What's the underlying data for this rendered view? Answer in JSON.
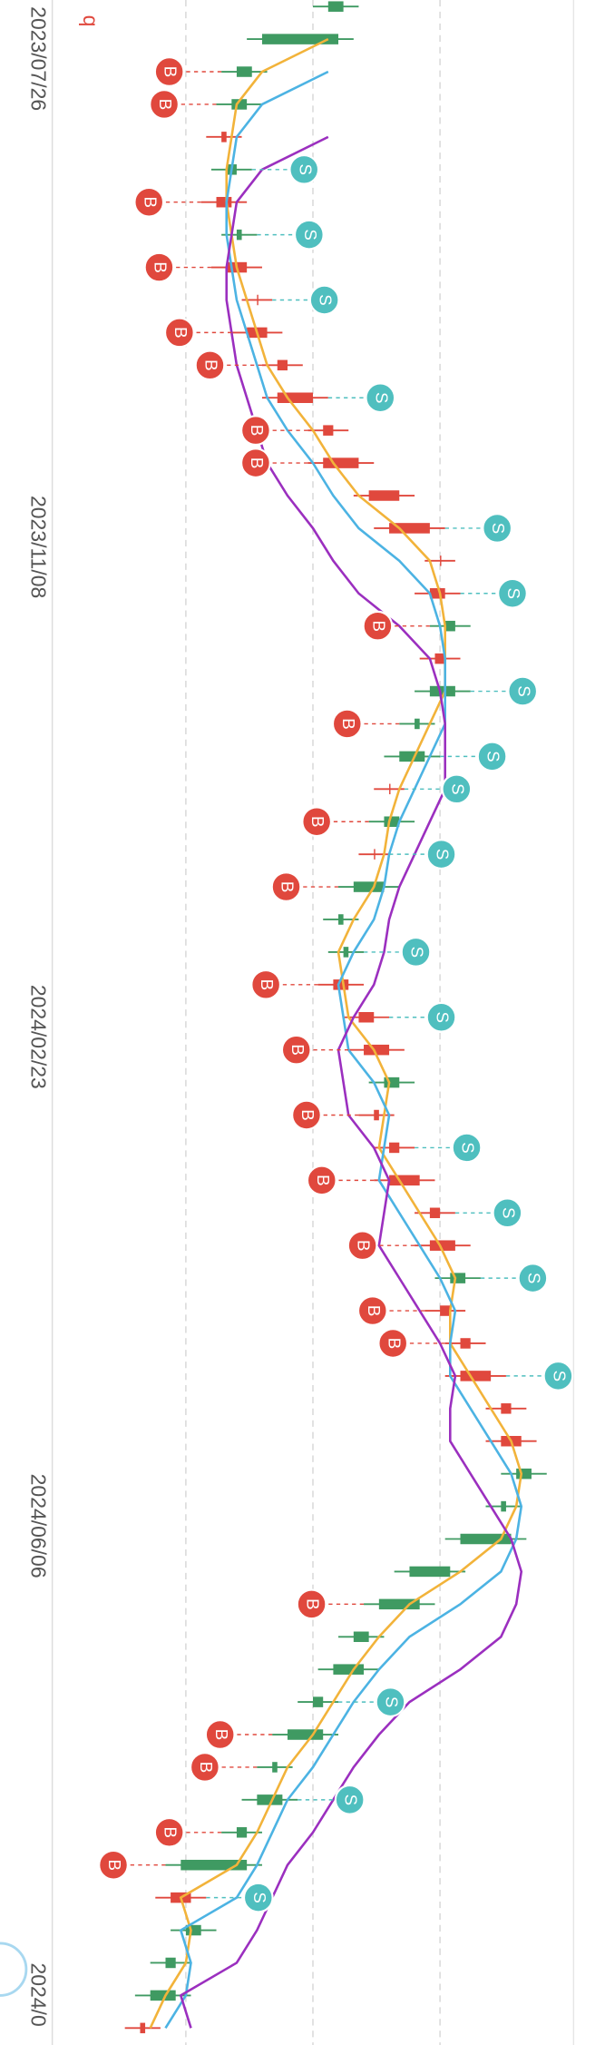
{
  "chart_data": {
    "type": "candlestick",
    "corner_label": "q",
    "categories": [
      "2023/07/26",
      null,
      null,
      null,
      null,
      null,
      null,
      null,
      null,
      null,
      null,
      null,
      null,
      null,
      null,
      "2023/11/08",
      null,
      null,
      null,
      null,
      null,
      null,
      null,
      null,
      null,
      null,
      null,
      null,
      null,
      null,
      "2024/02/23",
      null,
      null,
      null,
      null,
      null,
      null,
      null,
      null,
      null,
      null,
      null,
      null,
      null,
      null,
      "2024/06/06",
      null,
      null,
      null,
      null,
      null,
      null,
      null,
      null,
      null,
      null,
      null,
      null,
      null,
      null,
      "2024/0",
      null,
      null
    ],
    "open": [
      56,
      55,
      38,
      37,
      32,
      35,
      31,
      36,
      33,
      39,
      37,
      43,
      43,
      52,
      52,
      61,
      65,
      75,
      73,
      78,
      74,
      78,
      71,
      72,
      65,
      67,
      62,
      64,
      56,
      57,
      54,
      59,
      60,
      67,
      62,
      65,
      65,
      73,
      73,
      80,
      75,
      79,
      79,
      87,
      87,
      93,
      88,
      89,
      77,
      71,
      61,
      60,
      52,
      52,
      43,
      44,
      37,
      37,
      22,
      28,
      23,
      23,
      16
    ],
    "high": [
      59,
      58,
      41,
      40,
      36,
      38,
      37,
      39,
      40,
      42,
      44,
      48,
      53,
      57,
      62,
      70,
      76,
      78,
      79,
      81,
      79,
      81,
      74,
      75,
      68,
      70,
      65,
      67,
      59,
      60,
      60,
      65,
      68,
      70,
      66,
      70,
      74,
      78,
      81,
      83,
      80,
      84,
      88,
      92,
      94,
      96,
      91,
      92,
      80,
      74,
      64,
      63,
      55,
      55,
      46,
      47,
      40,
      40,
      29,
      31,
      26,
      26,
      20
    ],
    "low": [
      50,
      37,
      32,
      31,
      29,
      30,
      28,
      32,
      30,
      36,
      34,
      40,
      40,
      49,
      49,
      58,
      62,
      72,
      70,
      73,
      71,
      70,
      67,
      64,
      62,
      61,
      59,
      55,
      52,
      53,
      51,
      56,
      57,
      61,
      59,
      62,
      62,
      70,
      70,
      74,
      72,
      76,
      76,
      84,
      84,
      87,
      84,
      76,
      66,
      60,
      55,
      51,
      47,
      42,
      39,
      36,
      32,
      21,
      19,
      22,
      18,
      15,
      13
    ],
    "close": [
      53,
      40,
      35,
      34,
      33,
      33,
      34,
      35,
      37,
      39,
      41,
      45,
      50,
      54,
      59,
      67,
      73,
      75,
      76,
      76,
      76,
      73,
      70,
      67,
      65,
      64,
      62,
      58,
      55,
      56,
      57,
      62,
      65,
      64,
      63,
      67,
      71,
      75,
      78,
      77,
      77,
      81,
      85,
      89,
      91,
      90,
      87,
      79,
      69,
      63,
      58,
      54,
      50,
      45,
      42,
      39,
      35,
      24,
      26,
      25,
      21,
      18,
      17
    ],
    "up_color": "#e0483d",
    "down_color": "#3f9a62",
    "lines": [
      {
        "color": "#f2b33a",
        "values": [
          null,
          53,
          40,
          35,
          34,
          33,
          33,
          34,
          35,
          37,
          39,
          41,
          45,
          50,
          54,
          59,
          67,
          73,
          75,
          76,
          76,
          76,
          73,
          70,
          67,
          65,
          64,
          62,
          58,
          55,
          56,
          57,
          62,
          65,
          64,
          63,
          67,
          71,
          75,
          78,
          77,
          77,
          81,
          85,
          89,
          91,
          90,
          87,
          79,
          69,
          63,
          58,
          54,
          50,
          45,
          42,
          39,
          35,
          24,
          26,
          25,
          21,
          18
        ]
      },
      {
        "color": "#4cb3e3",
        "values": [
          null,
          null,
          53,
          40,
          35,
          34,
          33,
          33,
          34,
          35,
          37,
          39,
          41,
          45,
          50,
          54,
          59,
          67,
          73,
          75,
          76,
          76,
          76,
          73,
          70,
          67,
          65,
          64,
          62,
          58,
          55,
          56,
          57,
          62,
          65,
          64,
          63,
          67,
          71,
          75,
          78,
          77,
          77,
          81,
          85,
          89,
          91,
          90,
          87,
          79,
          69,
          63,
          58,
          54,
          50,
          45,
          42,
          39,
          35,
          24,
          26,
          25,
          21
        ]
      },
      {
        "color": "#9b2fbf",
        "values": [
          null,
          null,
          null,
          null,
          53,
          40,
          35,
          34,
          33,
          33,
          34,
          35,
          37,
          39,
          41,
          45,
          50,
          54,
          59,
          67,
          73,
          75,
          76,
          76,
          76,
          73,
          70,
          67,
          65,
          64,
          62,
          58,
          55,
          56,
          57,
          62,
          65,
          64,
          63,
          67,
          71,
          75,
          78,
          77,
          77,
          81,
          85,
          89,
          91,
          90,
          87,
          79,
          69,
          63,
          58,
          54,
          50,
          45,
          42,
          39,
          35,
          24,
          26
        ]
      }
    ],
    "signals": [
      null,
      null,
      "B",
      "B",
      null,
      "S",
      "B",
      "S",
      "B",
      "S",
      "B",
      "B",
      "S",
      "B",
      "B",
      null,
      "S",
      null,
      "S",
      "B",
      null,
      "S",
      "B",
      "S",
      "S",
      "B",
      "S",
      "B",
      null,
      "S",
      "B",
      "S",
      "B",
      null,
      "B",
      "S",
      "B",
      "S",
      "B",
      "S",
      "B",
      "B",
      "S",
      null,
      null,
      null,
      null,
      null,
      null,
      "B",
      null,
      null,
      "S",
      "B",
      "B",
      "S",
      "B",
      "B",
      "S",
      null,
      null,
      null,
      null
    ],
    "signal_colors": {
      "B": "#e0483d",
      "S": "#4fbfbf"
    },
    "ylim": [
      0,
      100
    ],
    "yticks": [
      25,
      50,
      75
    ],
    "grid": true
  }
}
